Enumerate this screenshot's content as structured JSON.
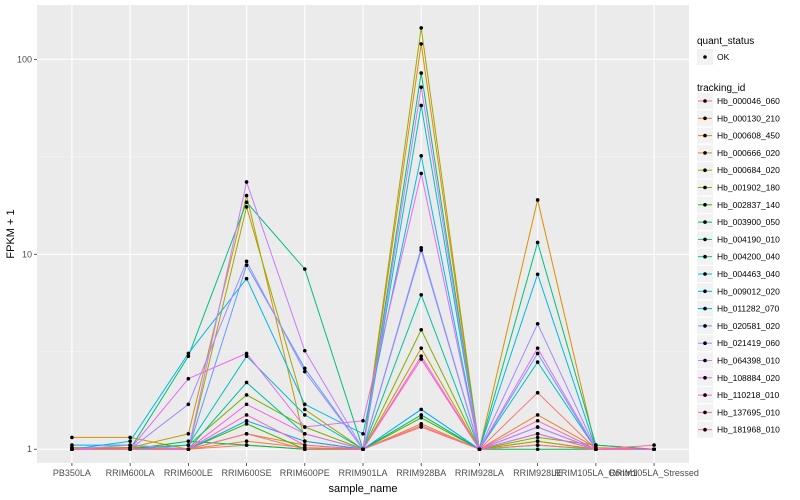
{
  "chart_data": {
    "type": "line",
    "xlabel": "sample_name",
    "ylabel": "FPKM + 1",
    "y_scale": "log10",
    "ylim": [
      0.85,
      190
    ],
    "y_ticks": [
      1,
      10,
      100
    ],
    "grid": true,
    "legend_position": "right",
    "categories": [
      "PB350LA",
      "RRIM600LA",
      "RRIM600LE",
      "RRIM600SE",
      "RRIM600PE",
      "RRIM901LA",
      "RRIM928BA",
      "RRIM928LA",
      "RRIM928LE",
      "RRIM105LA_Control",
      "RRIM105LA_Stressed"
    ],
    "shape_legend": {
      "title": "quant_status",
      "items": [
        {
          "label": "OK"
        }
      ]
    },
    "color_legend_title": "tracking_id",
    "series": [
      {
        "name": "Hb_000046_060",
        "color": "#F8766D",
        "values": [
          1.02,
          1.0,
          1.0,
          1.05,
          1.0,
          1.0,
          1.3,
          1.0,
          1.95,
          1.0,
          1.0
        ]
      },
      {
        "name": "Hb_000130_210",
        "color": "#EA8331",
        "values": [
          1.0,
          1.02,
          1.0,
          1.1,
          1.02,
          1.0,
          1.35,
          1.0,
          1.5,
          1.02,
          1.0
        ]
      },
      {
        "name": "Hb_000608_450",
        "color": "#D89000",
        "values": [
          1.15,
          1.15,
          1.0,
          1.2,
          1.05,
          1.0,
          120,
          1.0,
          19,
          1.0,
          1.0
        ]
      },
      {
        "name": "Hb_000666_020",
        "color": "#C09B00",
        "values": [
          1.02,
          1.02,
          1.2,
          20,
          1.1,
          1.0,
          3.3,
          1.0,
          1.1,
          1.0,
          1.0
        ]
      },
      {
        "name": "Hb_000684_020",
        "color": "#A3A500",
        "values": [
          1.0,
          1.0,
          1.0,
          17.5,
          1.6,
          1.0,
          145,
          1.0,
          1.1,
          1.0,
          1.0
        ]
      },
      {
        "name": "Hb_001902_180",
        "color": "#7CAE00",
        "values": [
          1.0,
          1.02,
          1.05,
          1.9,
          1.3,
          1.0,
          4.1,
          1.0,
          1.15,
          1.05,
          1.0
        ]
      },
      {
        "name": "Hb_002837_140",
        "color": "#39B600",
        "values": [
          1.0,
          1.0,
          1.0,
          1.35,
          1.0,
          1.0,
          1.45,
          1.0,
          1.05,
          1.0,
          1.0
        ]
      },
      {
        "name": "Hb_003900_050",
        "color": "#00BB4E",
        "values": [
          1.0,
          1.0,
          1.1,
          1.05,
          1.0,
          1.0,
          1.5,
          1.0,
          1.0,
          1.0,
          1.0
        ]
      },
      {
        "name": "Hb_004190_010",
        "color": "#00BF7D",
        "values": [
          1.0,
          1.0,
          3.0,
          18.5,
          8.4,
          1.0,
          85,
          1.0,
          11.5,
          1.05,
          1.0
        ]
      },
      {
        "name": "Hb_004200_040",
        "color": "#00C1A3",
        "values": [
          1.0,
          1.0,
          1.0,
          2.2,
          1.2,
          1.0,
          6.2,
          1.0,
          1.3,
          1.0,
          1.0
        ]
      },
      {
        "name": "Hb_004463_040",
        "color": "#00BFC4",
        "values": [
          1.0,
          1.0,
          1.05,
          3.0,
          1.5,
          1.0,
          58,
          1.0,
          2.8,
          1.0,
          1.0
        ]
      },
      {
        "name": "Hb_009012_020",
        "color": "#00B8E7",
        "values": [
          1.0,
          1.1,
          3.1,
          7.5,
          1.7,
          1.2,
          32,
          1.0,
          7.9,
          1.0,
          1.0
        ]
      },
      {
        "name": "Hb_011282_070",
        "color": "#00A9FF",
        "values": [
          1.05,
          1.05,
          1.0,
          1.4,
          1.1,
          1.0,
          1.6,
          1.0,
          1.2,
          1.0,
          1.0
        ]
      },
      {
        "name": "Hb_020581_020",
        "color": "#619CFF",
        "values": [
          1.0,
          1.0,
          1.0,
          8.8,
          2.6,
          1.0,
          10.5,
          1.0,
          3.1,
          1.0,
          1.0
        ]
      },
      {
        "name": "Hb_021419_060",
        "color": "#9F8CFF",
        "values": [
          1.0,
          1.0,
          1.7,
          9.2,
          2.5,
          1.0,
          10.8,
          1.0,
          4.4,
          1.0,
          1.0
        ]
      },
      {
        "name": "Hb_064398_010",
        "color": "#C77CFF",
        "values": [
          1.0,
          1.05,
          1.0,
          23.5,
          3.2,
          1.0,
          72,
          1.0,
          1.3,
          1.0,
          1.0
        ]
      },
      {
        "name": "Hb_108884_020",
        "color": "#E76BF3",
        "values": [
          1.0,
          1.0,
          2.3,
          3.1,
          1.3,
          1.4,
          26,
          1.0,
          3.3,
          1.0,
          1.0
        ]
      },
      {
        "name": "Hb_110218_010",
        "color": "#F763E0",
        "values": [
          1.0,
          1.0,
          1.0,
          1.7,
          1.2,
          1.0,
          3.0,
          1.0,
          1.2,
          1.0,
          1.0
        ]
      },
      {
        "name": "Hb_137695_010",
        "color": "#FF62BC",
        "values": [
          1.0,
          1.0,
          1.0,
          1.5,
          1.05,
          1.0,
          2.9,
          1.0,
          1.4,
          1.0,
          1.0
        ]
      },
      {
        "name": "Hb_181968_010",
        "color": "#FF6C91",
        "values": [
          1.0,
          1.0,
          1.0,
          1.2,
          1.0,
          1.0,
          1.32,
          1.0,
          1.05,
          1.0,
          1.05
        ]
      }
    ]
  }
}
